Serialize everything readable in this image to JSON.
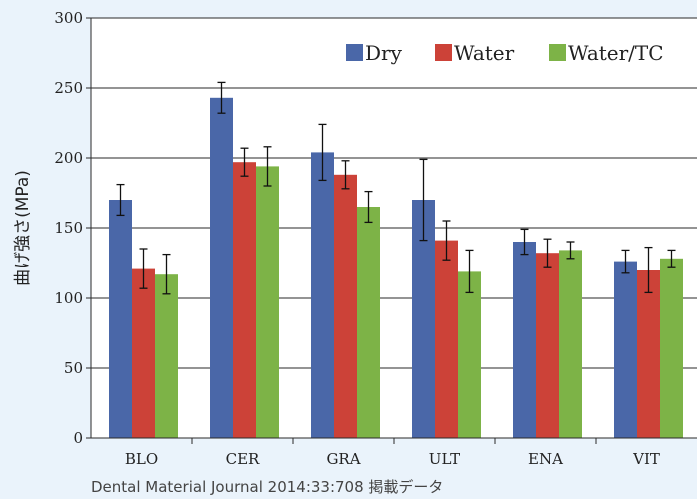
{
  "chart_data": {
    "type": "bar",
    "ylabel": "曲げ強さ(MPa)",
    "ylim": [
      0,
      300
    ],
    "yticks": [
      0,
      50,
      100,
      150,
      200,
      250,
      300
    ],
    "grid": true,
    "legend_position": "top-right",
    "categories": [
      "BLO",
      "CER",
      "GRA",
      "ULT",
      "ENA",
      "VIT"
    ],
    "series": [
      {
        "name": "Dry",
        "color": "#4a67a8",
        "values": [
          170,
          243,
          204,
          170,
          140,
          126
        ],
        "errors": [
          11,
          11,
          20,
          29,
          9,
          8
        ]
      },
      {
        "name": "Water",
        "color": "#cc4238",
        "values": [
          121,
          197,
          188,
          141,
          132,
          120
        ],
        "errors": [
          14,
          10,
          10,
          14,
          10,
          16
        ]
      },
      {
        "name": "Water/TC",
        "color": "#7db347",
        "values": [
          117,
          194,
          165,
          119,
          134,
          128
        ],
        "errors": [
          14,
          14,
          11,
          15,
          6,
          6
        ]
      }
    ]
  },
  "source_note": "Dental Material Journal 2014:33:708 掲載データ"
}
